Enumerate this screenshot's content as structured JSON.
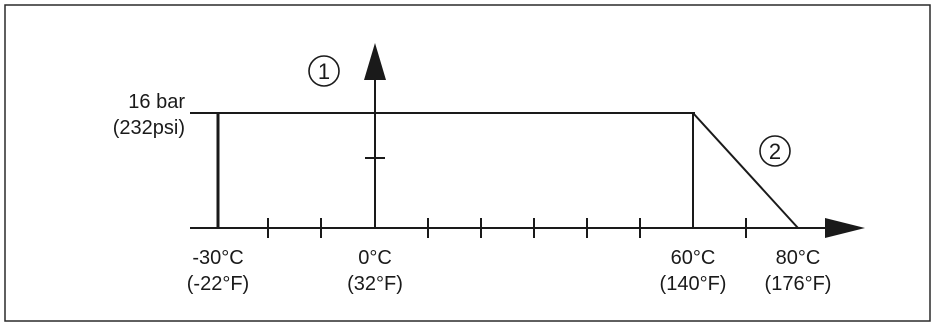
{
  "diagram": {
    "callouts": {
      "axis_marker": "1",
      "curve_marker": "2"
    },
    "y_label": {
      "line1": "16 bar",
      "line2": "(232psi)"
    },
    "x_labels": [
      {
        "celsius": "-30°C",
        "fahrenheit": "(-22°F)"
      },
      {
        "celsius": "0°C",
        "fahrenheit": "(32°F)"
      },
      {
        "celsius": "60°C",
        "fahrenheit": "(140°F)"
      },
      {
        "celsius": "80°C",
        "fahrenheit": "(176°F)"
      }
    ]
  },
  "colors": {
    "line": "#1a1a1a",
    "frame": "#2a2a2a",
    "background": "#ffffff"
  }
}
